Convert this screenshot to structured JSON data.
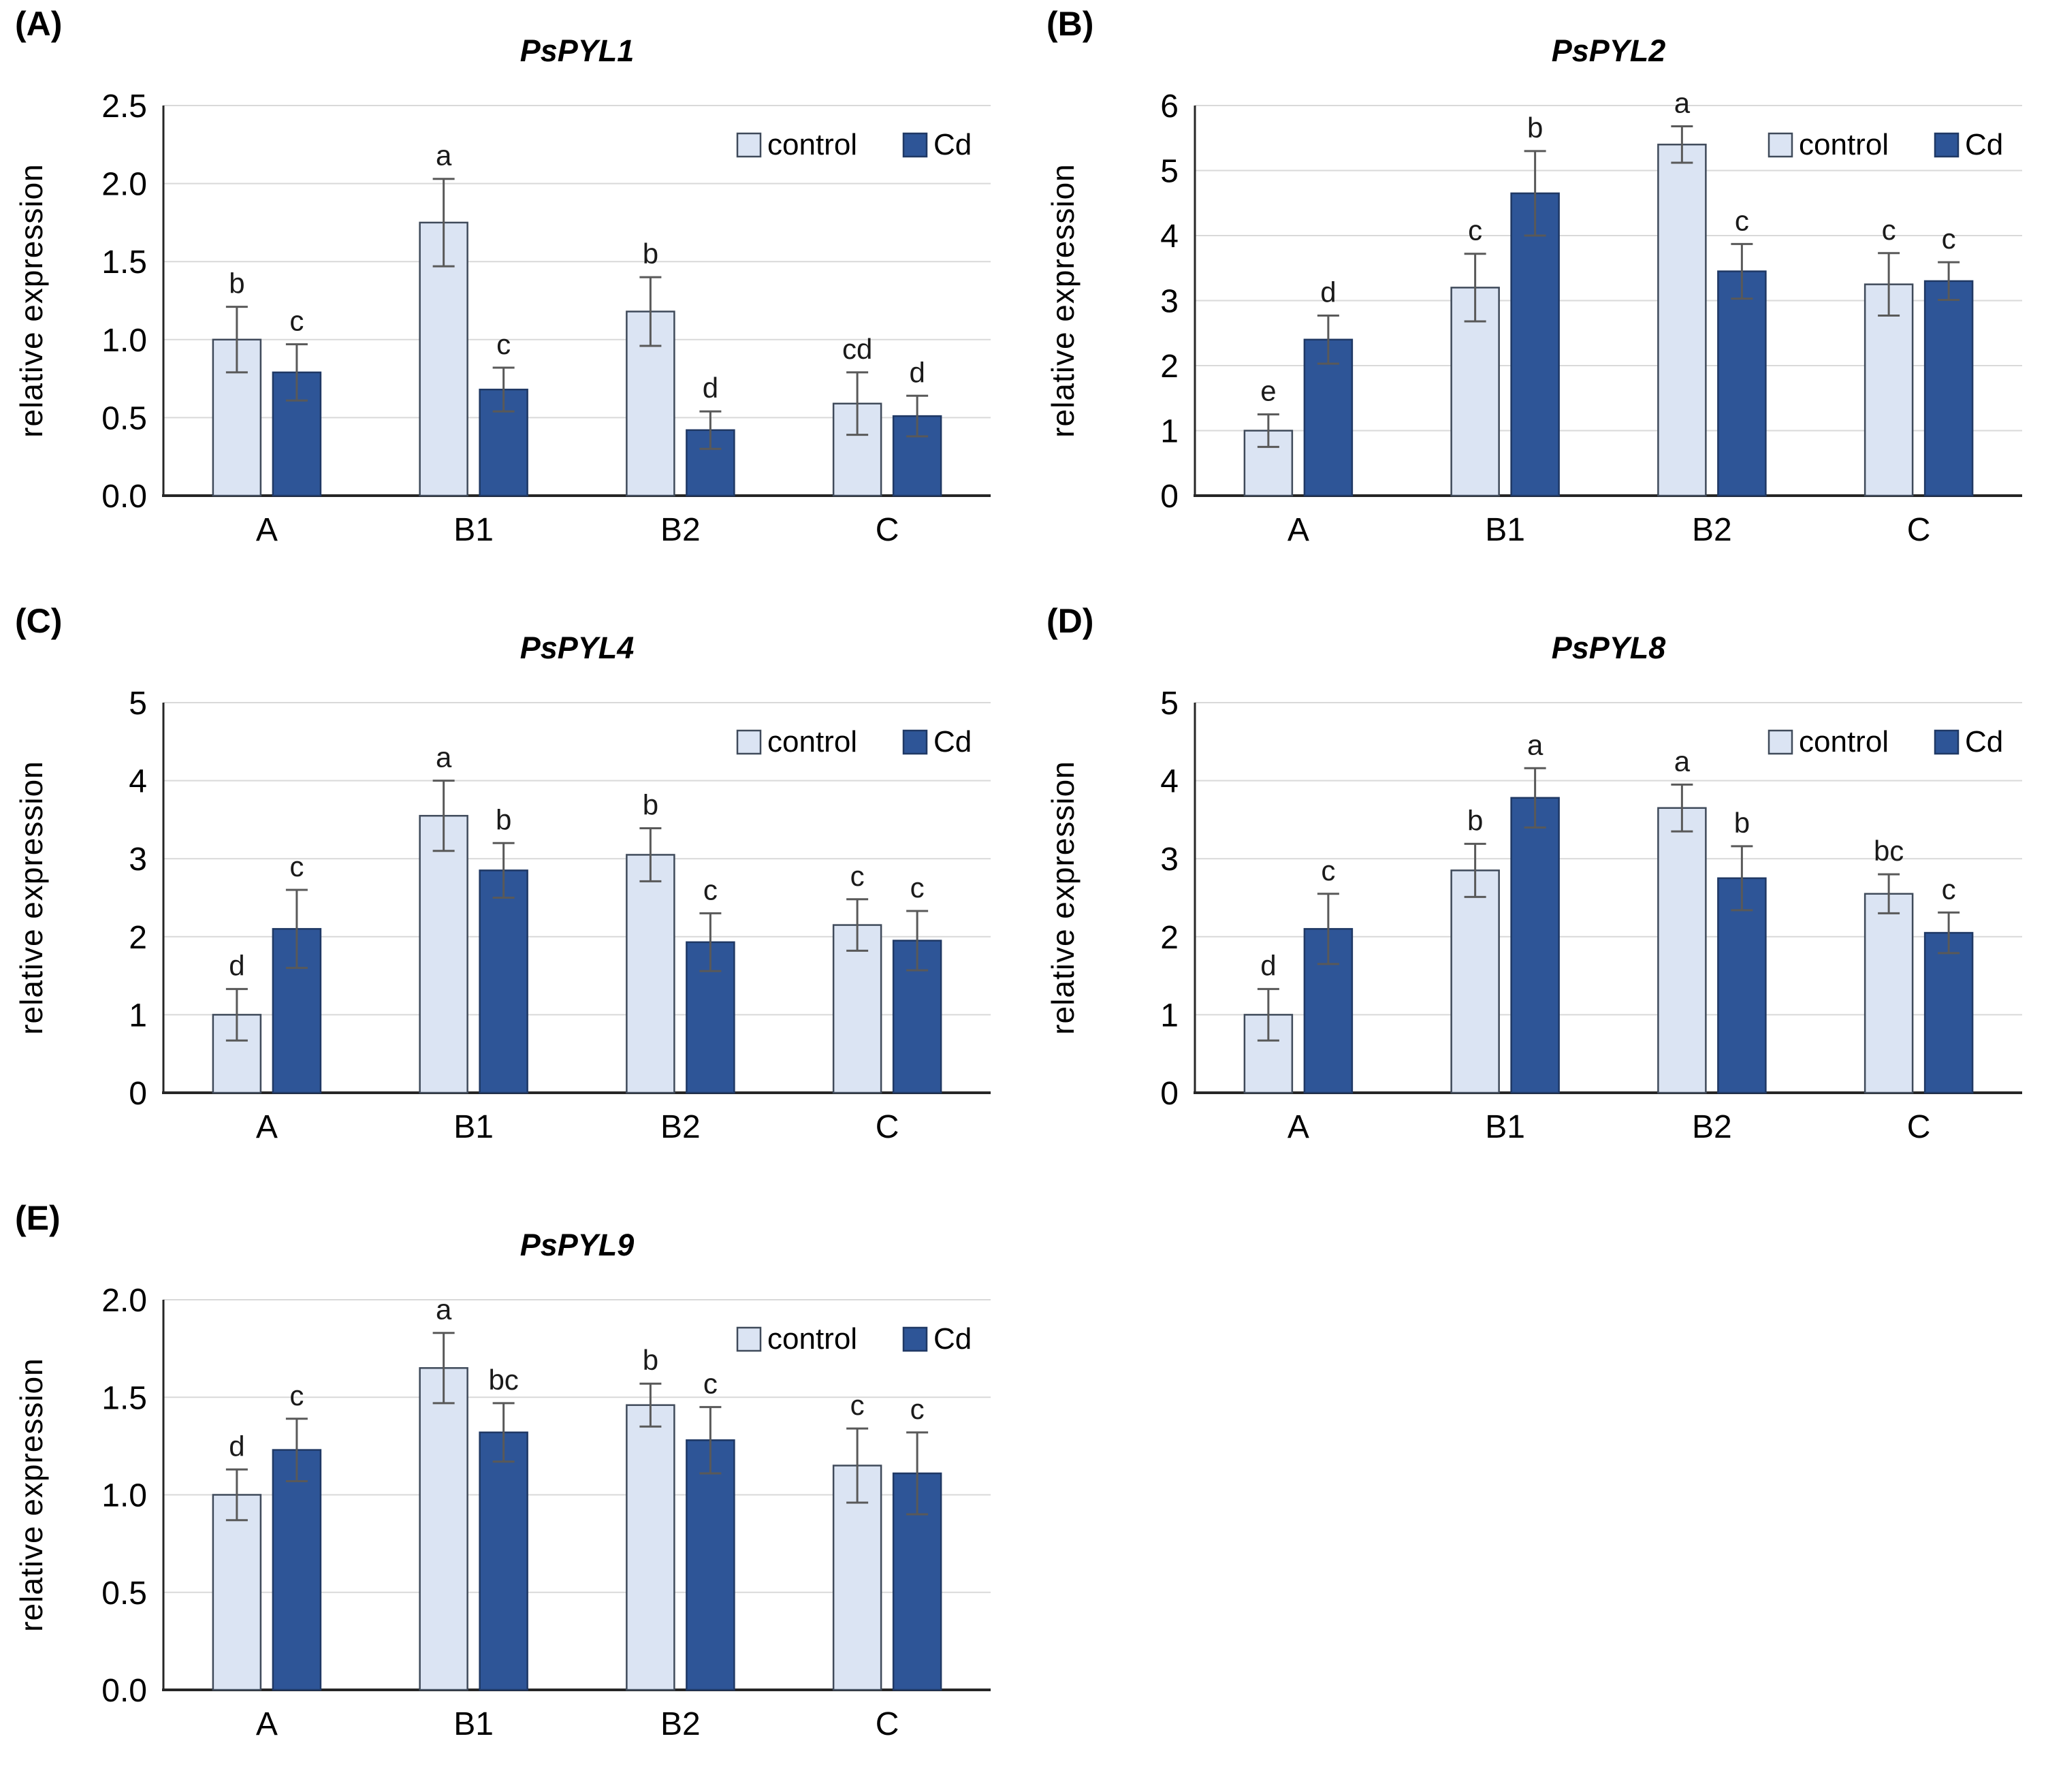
{
  "figure": {
    "background": "#ffffff",
    "description_visible_panels": [
      "(A)",
      "(B)",
      "(C)",
      "(D)",
      "(E)"
    ]
  },
  "colors": {
    "control_fill": "#dbe4f3",
    "cd_fill": "#2e5597",
    "control_border": "#3f4a5a",
    "cd_border": "#1f3864",
    "error": "#595959",
    "grid": "#d9d9d9",
    "axis": "#262626"
  },
  "chart_data": [
    {
      "panel_label": "(A)",
      "type": "bar",
      "title": "PsPYL1",
      "ylabel": "relative expression",
      "xlabel": "",
      "categories": [
        "A",
        "B1",
        "B2",
        "C"
      ],
      "ylim": [
        0,
        2.5
      ],
      "yticks": [
        "0.0",
        "0.5",
        "1.0",
        "1.5",
        "2.0",
        "2.5"
      ],
      "grid": true,
      "legend": [
        "control",
        "Cd"
      ],
      "legend_position": "top-right",
      "series": [
        {
          "name": "control",
          "values": [
            1.0,
            1.75,
            1.18,
            0.59
          ],
          "errors": [
            0.21,
            0.28,
            0.22,
            0.2
          ],
          "letters": [
            "b",
            "a",
            "b",
            "cd"
          ]
        },
        {
          "name": "Cd",
          "values": [
            0.79,
            0.68,
            0.42,
            0.51
          ],
          "errors": [
            0.18,
            0.14,
            0.12,
            0.13
          ],
          "letters": [
            "c",
            "c",
            "d",
            "d"
          ]
        }
      ]
    },
    {
      "panel_label": "(B)",
      "type": "bar",
      "title": "PsPYL2",
      "ylabel": "relative expression",
      "xlabel": "",
      "categories": [
        "A",
        "B1",
        "B2",
        "C"
      ],
      "ylim": [
        0,
        6
      ],
      "yticks": [
        "0",
        "1",
        "2",
        "3",
        "4",
        "5",
        "6"
      ],
      "grid": true,
      "legend": [
        "control",
        "Cd"
      ],
      "legend_position": "top-right",
      "series": [
        {
          "name": "control",
          "values": [
            1.0,
            3.2,
            5.4,
            3.25
          ],
          "errors": [
            0.25,
            0.52,
            0.28,
            0.48
          ],
          "letters": [
            "e",
            "c",
            "a",
            "c"
          ]
        },
        {
          "name": "Cd",
          "values": [
            2.4,
            4.65,
            3.45,
            3.3
          ],
          "errors": [
            0.37,
            0.65,
            0.42,
            0.29
          ],
          "letters": [
            "d",
            "b",
            "c",
            "c"
          ]
        }
      ]
    },
    {
      "panel_label": "(C)",
      "type": "bar",
      "title": "PsPYL4",
      "ylabel": "relative expression",
      "xlabel": "",
      "categories": [
        "A",
        "B1",
        "B2",
        "C"
      ],
      "ylim": [
        0,
        5
      ],
      "yticks": [
        "0",
        "1",
        "2",
        "3",
        "4",
        "5"
      ],
      "grid": true,
      "legend": [
        "control",
        "Cd"
      ],
      "legend_position": "top-right",
      "series": [
        {
          "name": "control",
          "values": [
            1.0,
            3.55,
            3.05,
            2.15
          ],
          "errors": [
            0.33,
            0.45,
            0.34,
            0.33
          ],
          "letters": [
            "d",
            "a",
            "b",
            "c"
          ]
        },
        {
          "name": "Cd",
          "values": [
            2.1,
            2.85,
            1.93,
            1.95
          ],
          "errors": [
            0.5,
            0.35,
            0.37,
            0.38
          ],
          "letters": [
            "c",
            "b",
            "c",
            "c"
          ]
        }
      ]
    },
    {
      "panel_label": "(D)",
      "type": "bar",
      "title": "PsPYL8",
      "ylabel": "relative expression",
      "xlabel": "",
      "categories": [
        "A",
        "B1",
        "B2",
        "C"
      ],
      "ylim": [
        0,
        5
      ],
      "yticks": [
        "0",
        "1",
        "2",
        "3",
        "4",
        "5"
      ],
      "grid": true,
      "legend": [
        "control",
        "Cd"
      ],
      "legend_position": "top-right",
      "series": [
        {
          "name": "control",
          "values": [
            1.0,
            2.85,
            3.65,
            2.55
          ],
          "errors": [
            0.33,
            0.34,
            0.3,
            0.25
          ],
          "letters": [
            "d",
            "b",
            "a",
            "bc"
          ]
        },
        {
          "name": "Cd",
          "values": [
            2.1,
            3.78,
            2.75,
            2.05
          ],
          "errors": [
            0.45,
            0.38,
            0.41,
            0.26
          ],
          "letters": [
            "c",
            "a",
            "b",
            "c"
          ]
        }
      ]
    },
    {
      "panel_label": "(E)",
      "type": "bar",
      "title": "PsPYL9",
      "ylabel": "relative expression",
      "xlabel": "",
      "categories": [
        "A",
        "B1",
        "B2",
        "C"
      ],
      "ylim": [
        0,
        2
      ],
      "yticks": [
        "0.0",
        "0.5",
        "1.0",
        "1.5",
        "2.0"
      ],
      "grid": true,
      "legend": [
        "control",
        "Cd"
      ],
      "legend_position": "top-right",
      "series": [
        {
          "name": "control",
          "values": [
            1.0,
            1.65,
            1.46,
            1.15
          ],
          "errors": [
            0.13,
            0.18,
            0.11,
            0.19
          ],
          "letters": [
            "d",
            "a",
            "b",
            "c"
          ]
        },
        {
          "name": "Cd",
          "values": [
            1.23,
            1.32,
            1.28,
            1.11
          ],
          "errors": [
            0.16,
            0.15,
            0.17,
            0.21
          ],
          "letters": [
            "c",
            "bc",
            "c",
            "c"
          ]
        }
      ]
    }
  ]
}
